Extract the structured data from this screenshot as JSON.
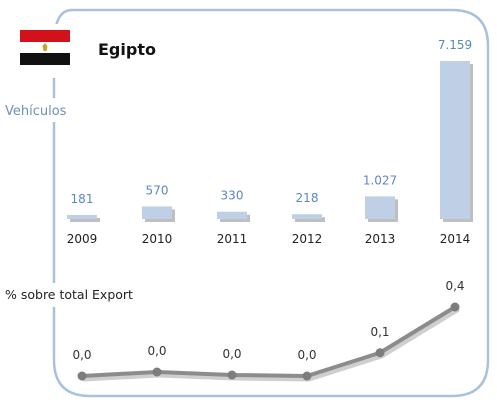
{
  "country": {
    "name": "Egipto",
    "flag": {
      "top": "#d3111a",
      "middle": "#ffffff",
      "bottom": "#111111",
      "emblem": "#c9a227",
      "icon": "egypt-flag-icon"
    }
  },
  "colors": {
    "frame": "#a9c1dc",
    "bar": "#bfd0e6",
    "bar_shadow": "#8a8a8a",
    "value_label": "#5b88c4",
    "section_label": "#6d8fbd",
    "year_label": "#222222",
    "line": "#8c8c8c",
    "line_marker": "#7d7d7d",
    "line_shadow": "#cfcfcf",
    "pct_label": "#333333"
  },
  "chart_data": [
    {
      "type": "bar",
      "ylabel": "Vehículos",
      "categories": [
        "2009",
        "2010",
        "2011",
        "2012",
        "2013",
        "2014"
      ],
      "values": [
        181,
        570,
        330,
        218,
        1027,
        7159
      ],
      "value_labels": [
        "181",
        "570",
        "330",
        "218",
        "1.027",
        "7.159"
      ],
      "ylim": [
        0,
        7159
      ],
      "grid": false
    },
    {
      "type": "line",
      "ylabel": "% sobre total Export",
      "categories": [
        "2009",
        "2010",
        "2011",
        "2012",
        "2013",
        "2014"
      ],
      "values": [
        0.0,
        0.0,
        0.0,
        0.0,
        0.1,
        0.4
      ],
      "value_labels": [
        "0,0",
        "0,0",
        "0,0",
        "0,0",
        "0,1",
        "0,4"
      ],
      "ylim": [
        0,
        0.4
      ],
      "grid": false
    }
  ]
}
